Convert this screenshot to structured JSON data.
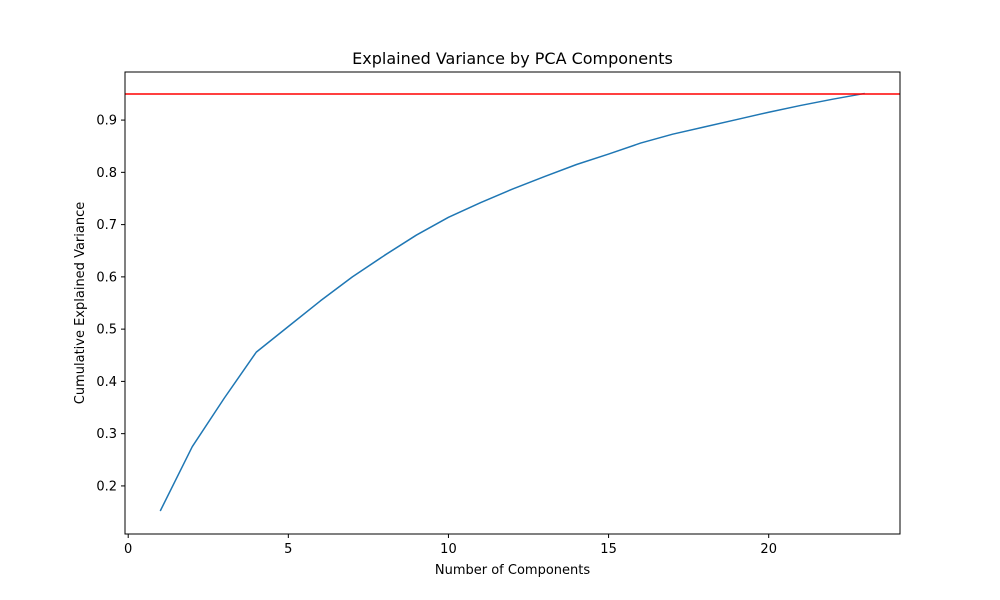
{
  "chart_data": {
    "type": "line",
    "title": "Explained Variance by PCA Components",
    "xlabel": "Number of Components",
    "ylabel": "Cumulative Explained Variance",
    "xlim": [
      -0.1,
      24.1
    ],
    "ylim": [
      0.108,
      0.992
    ],
    "xticks": [
      0,
      5,
      10,
      15,
      20
    ],
    "yticks": [
      0.2,
      0.3,
      0.4,
      0.5,
      0.6,
      0.7,
      0.8,
      0.9
    ],
    "grid": false,
    "series": [
      {
        "color": "#1f77b4",
        "x": [
          1,
          2,
          3,
          4,
          5,
          6,
          7,
          8,
          9,
          10,
          11,
          12,
          13,
          14,
          15,
          16,
          17,
          18,
          19,
          20,
          21,
          22,
          23
        ],
        "y": [
          0.152,
          0.275,
          0.368,
          0.456,
          0.505,
          0.554,
          0.6,
          0.641,
          0.68,
          0.714,
          0.742,
          0.768,
          0.792,
          0.815,
          0.835,
          0.856,
          0.873,
          0.887,
          0.901,
          0.915,
          0.928,
          0.94,
          0.951
        ]
      }
    ],
    "hlines": [
      {
        "y": 0.95,
        "color": "#ff0000"
      }
    ]
  }
}
